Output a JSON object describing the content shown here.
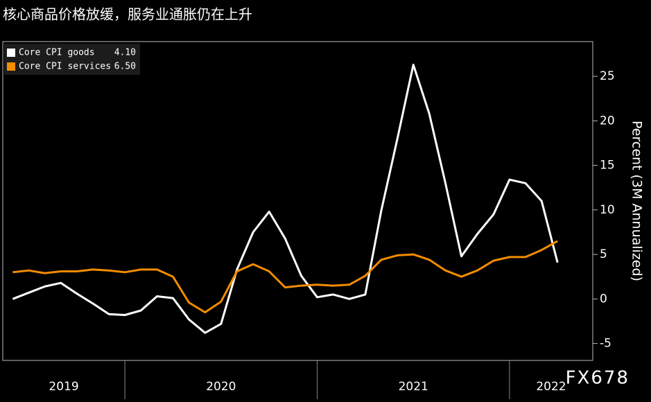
{
  "chart_data": {
    "type": "line",
    "title": "核心商品价格放缓，服务业通胀仍在上升",
    "y_label": "Percent (3M Annualized)",
    "watermark": "FX678",
    "x": [
      2019.417,
      2019.5,
      2019.583,
      2019.667,
      2019.75,
      2019.833,
      2019.917,
      2020,
      2020.083,
      2020.167,
      2020.25,
      2020.333,
      2020.417,
      2020.5,
      2020.583,
      2020.667,
      2020.75,
      2020.833,
      2020.917,
      2021,
      2021.083,
      2021.167,
      2021.25,
      2021.333,
      2021.417,
      2021.5,
      2021.583,
      2021.667,
      2021.75,
      2021.833,
      2021.917,
      2022,
      2022.083,
      2022.167,
      2022.25
    ],
    "xlim": [
      2019.365,
      2022.433
    ],
    "xticks": [
      2020,
      2021,
      2022
    ],
    "year_labels": [
      "2019",
      "2020",
      "2021",
      "2022"
    ],
    "ylim": [
      -6.9,
      28.9
    ],
    "yticks": [
      -5,
      0,
      5,
      10,
      15,
      20,
      25
    ],
    "legend_position": "upper left",
    "series": [
      {
        "name": "Core CPI goods",
        "color": "#ffffff",
        "legend_value": "4.10",
        "values": [
          0,
          0.7,
          1.4,
          1.8,
          0.6,
          -0.5,
          -1.7,
          -1.8,
          -1.3,
          0.3,
          0.1,
          -2.3,
          -3.8,
          -2.8,
          3.3,
          7.5,
          9.8,
          6.8,
          2.6,
          0.2,
          0.5,
          0,
          0.5,
          9.9,
          18.0,
          26.3,
          20.8,
          13.0,
          4.8,
          7.3,
          9.5,
          13.4,
          13.0,
          11.0,
          4.1
        ]
      },
      {
        "name": "Core CPI services",
        "color": "#f28c00",
        "legend_value": "6.50",
        "values": [
          3.0,
          3.2,
          2.9,
          3.1,
          3.1,
          3.3,
          3.2,
          3.0,
          3.3,
          3.3,
          2.5,
          -0.4,
          -1.5,
          -0.3,
          3.1,
          3.9,
          3.1,
          1.3,
          1.5,
          1.6,
          1.5,
          1.6,
          2.6,
          4.4,
          4.9,
          5.0,
          4.4,
          3.2,
          2.5,
          3.2,
          4.3,
          4.7,
          4.7,
          5.5,
          6.5
        ]
      }
    ]
  }
}
